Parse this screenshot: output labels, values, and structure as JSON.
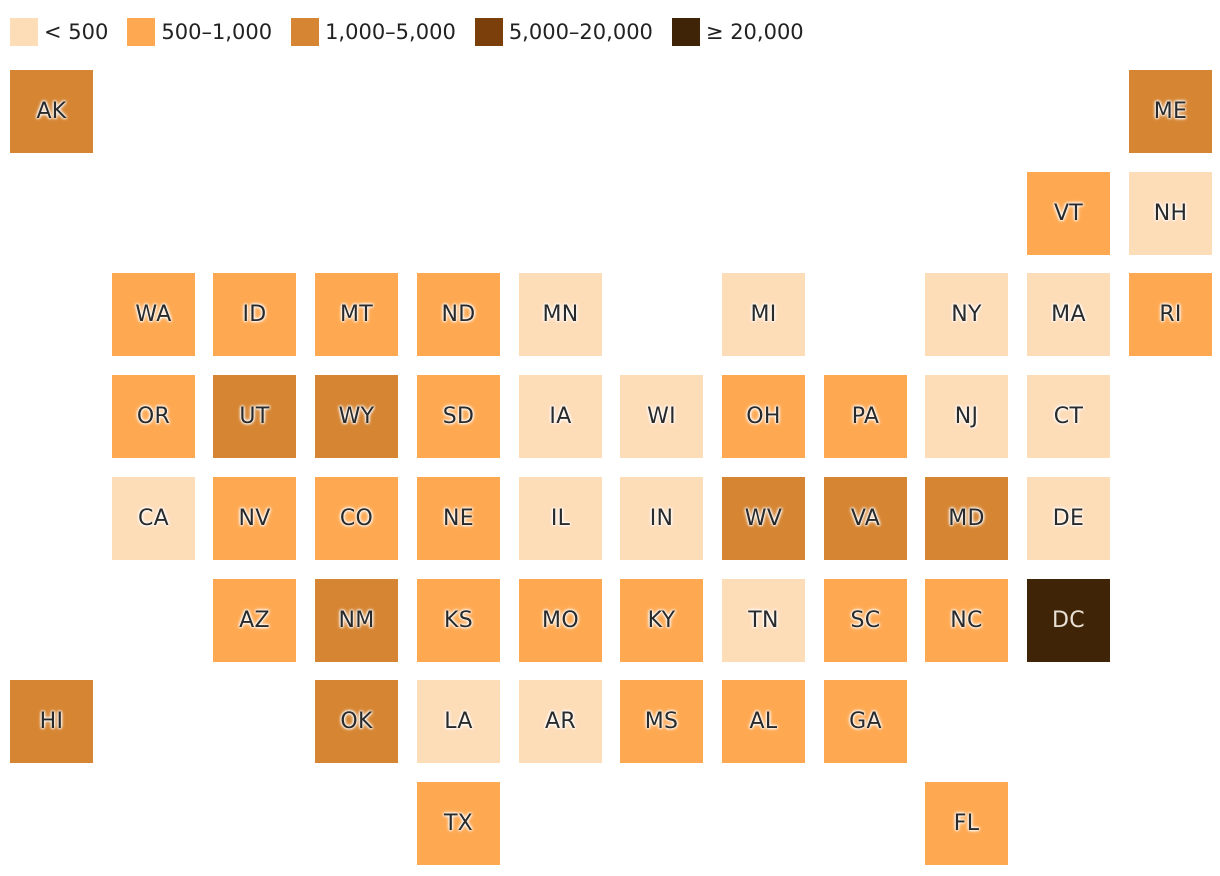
{
  "legend": [
    {
      "label": "< 500",
      "color": "#fddcb8"
    },
    {
      "label": "500–1,000",
      "color": "#fea952"
    },
    {
      "label": "1,000–5,000",
      "color": "#d68532"
    },
    {
      "label": "5,000–20,000",
      "color": "#7a3f0a"
    },
    {
      "label": "≥ 20,000",
      "color": "#3f2407"
    }
  ],
  "states": [
    {
      "abbr": "AK",
      "row": 0,
      "col": 0,
      "bin": 2
    },
    {
      "abbr": "ME",
      "row": 0,
      "col": 11,
      "bin": 2
    },
    {
      "abbr": "VT",
      "row": 1,
      "col": 10,
      "bin": 1
    },
    {
      "abbr": "NH",
      "row": 1,
      "col": 11,
      "bin": 0
    },
    {
      "abbr": "WA",
      "row": 2,
      "col": 1,
      "bin": 1
    },
    {
      "abbr": "ID",
      "row": 2,
      "col": 2,
      "bin": 1
    },
    {
      "abbr": "MT",
      "row": 2,
      "col": 3,
      "bin": 1
    },
    {
      "abbr": "ND",
      "row": 2,
      "col": 4,
      "bin": 1
    },
    {
      "abbr": "MN",
      "row": 2,
      "col": 5,
      "bin": 0
    },
    {
      "abbr": "MI",
      "row": 2,
      "col": 7,
      "bin": 0
    },
    {
      "abbr": "NY",
      "row": 2,
      "col": 9,
      "bin": 0
    },
    {
      "abbr": "MA",
      "row": 2,
      "col": 10,
      "bin": 0
    },
    {
      "abbr": "RI",
      "row": 2,
      "col": 11,
      "bin": 1
    },
    {
      "abbr": "OR",
      "row": 3,
      "col": 1,
      "bin": 1
    },
    {
      "abbr": "UT",
      "row": 3,
      "col": 2,
      "bin": 2
    },
    {
      "abbr": "WY",
      "row": 3,
      "col": 3,
      "bin": 2
    },
    {
      "abbr": "SD",
      "row": 3,
      "col": 4,
      "bin": 1
    },
    {
      "abbr": "IA",
      "row": 3,
      "col": 5,
      "bin": 0
    },
    {
      "abbr": "WI",
      "row": 3,
      "col": 6,
      "bin": 0
    },
    {
      "abbr": "OH",
      "row": 3,
      "col": 7,
      "bin": 1
    },
    {
      "abbr": "PA",
      "row": 3,
      "col": 8,
      "bin": 1
    },
    {
      "abbr": "NJ",
      "row": 3,
      "col": 9,
      "bin": 0
    },
    {
      "abbr": "CT",
      "row": 3,
      "col": 10,
      "bin": 0
    },
    {
      "abbr": "CA",
      "row": 4,
      "col": 1,
      "bin": 0
    },
    {
      "abbr": "NV",
      "row": 4,
      "col": 2,
      "bin": 1
    },
    {
      "abbr": "CO",
      "row": 4,
      "col": 3,
      "bin": 1
    },
    {
      "abbr": "NE",
      "row": 4,
      "col": 4,
      "bin": 1
    },
    {
      "abbr": "IL",
      "row": 4,
      "col": 5,
      "bin": 0
    },
    {
      "abbr": "IN",
      "row": 4,
      "col": 6,
      "bin": 0
    },
    {
      "abbr": "WV",
      "row": 4,
      "col": 7,
      "bin": 2
    },
    {
      "abbr": "VA",
      "row": 4,
      "col": 8,
      "bin": 2
    },
    {
      "abbr": "MD",
      "row": 4,
      "col": 9,
      "bin": 2
    },
    {
      "abbr": "DE",
      "row": 4,
      "col": 10,
      "bin": 0
    },
    {
      "abbr": "AZ",
      "row": 5,
      "col": 2,
      "bin": 1
    },
    {
      "abbr": "NM",
      "row": 5,
      "col": 3,
      "bin": 2
    },
    {
      "abbr": "KS",
      "row": 5,
      "col": 4,
      "bin": 1
    },
    {
      "abbr": "MO",
      "row": 5,
      "col": 5,
      "bin": 1
    },
    {
      "abbr": "KY",
      "row": 5,
      "col": 6,
      "bin": 1
    },
    {
      "abbr": "TN",
      "row": 5,
      "col": 7,
      "bin": 0
    },
    {
      "abbr": "SC",
      "row": 5,
      "col": 8,
      "bin": 1
    },
    {
      "abbr": "NC",
      "row": 5,
      "col": 9,
      "bin": 1
    },
    {
      "abbr": "DC",
      "row": 5,
      "col": 10,
      "bin": 4
    },
    {
      "abbr": "HI",
      "row": 6,
      "col": 0,
      "bin": 2
    },
    {
      "abbr": "OK",
      "row": 6,
      "col": 3,
      "bin": 2
    },
    {
      "abbr": "LA",
      "row": 6,
      "col": 4,
      "bin": 0
    },
    {
      "abbr": "AR",
      "row": 6,
      "col": 5,
      "bin": 0
    },
    {
      "abbr": "MS",
      "row": 6,
      "col": 6,
      "bin": 1
    },
    {
      "abbr": "AL",
      "row": 6,
      "col": 7,
      "bin": 1
    },
    {
      "abbr": "GA",
      "row": 6,
      "col": 8,
      "bin": 1
    },
    {
      "abbr": "TX",
      "row": 7,
      "col": 4,
      "bin": 1
    },
    {
      "abbr": "FL",
      "row": 7,
      "col": 9,
      "bin": 1
    }
  ]
}
